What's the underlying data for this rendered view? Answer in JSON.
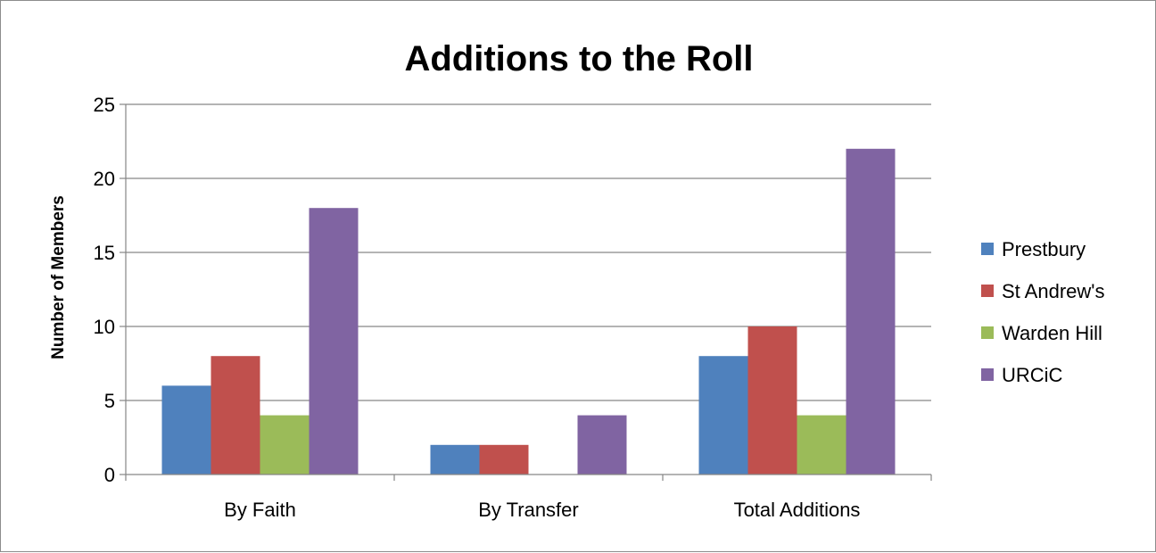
{
  "chart_data": {
    "type": "bar",
    "title": "Additions to the Roll",
    "xlabel": "",
    "ylabel": "Number of Members",
    "categories": [
      "By Faith",
      "By Transfer",
      "Total Additions"
    ],
    "series": [
      {
        "name": "Prestbury",
        "values": [
          6,
          2,
          8
        ],
        "color": "#4f81bd"
      },
      {
        "name": "St Andrew's",
        "values": [
          8,
          2,
          10
        ],
        "color": "#c0504d"
      },
      {
        "name": "Warden Hill",
        "values": [
          4,
          0,
          4
        ],
        "color": "#9bbb59"
      },
      {
        "name": "URCiC",
        "values": [
          18,
          4,
          22
        ],
        "color": "#8064a2"
      }
    ],
    "ylim": [
      0,
      25
    ],
    "yticks": [
      0,
      5,
      10,
      15,
      20,
      25
    ],
    "yticks_labels": [
      "0",
      "5",
      "10",
      "15",
      "20",
      "25"
    ],
    "grid": true,
    "legend_position": "right"
  },
  "colors": {
    "gridline": "#868686",
    "axis": "#868686",
    "frame": "#8c8c8c"
  }
}
